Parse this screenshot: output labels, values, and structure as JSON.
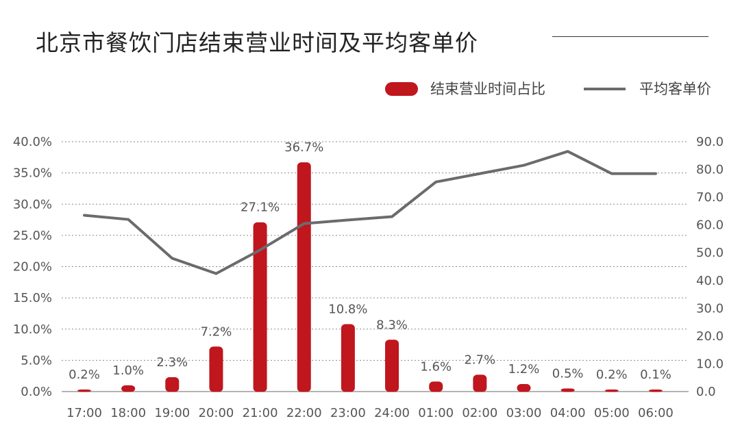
{
  "chart_data": {
    "type": "bar+line",
    "title": "北京市餐饮门店结束营业时间及平均客单价",
    "categories": [
      "17:00",
      "18:00",
      "19:00",
      "20:00",
      "21:00",
      "22:00",
      "23:00",
      "24:00",
      "01:00",
      "02:00",
      "03:00",
      "04:00",
      "05:00",
      "06:00"
    ],
    "series": [
      {
        "name": "结束营业时间占比",
        "type": "bar",
        "axis": "left",
        "color": "#c0161e",
        "values": [
          0.2,
          1.0,
          2.3,
          7.2,
          27.1,
          36.7,
          10.8,
          8.3,
          1.6,
          2.7,
          1.2,
          0.5,
          0.2,
          0.1
        ],
        "labels": [
          "0.2%",
          "1.0%",
          "2.3%",
          "7.2%",
          "27.1%",
          "36.7%",
          "10.8%",
          "8.3%",
          "1.6%",
          "2.7%",
          "1.2%",
          "0.5%",
          "0.2%",
          "0.1%"
        ]
      },
      {
        "name": "平均客单价",
        "type": "line",
        "axis": "right",
        "color": "#6b6b6b",
        "values": [
          63.5,
          62,
          48,
          42.5,
          51,
          60.5,
          61.8,
          63,
          75.5,
          78.5,
          81.5,
          86.5,
          78.5,
          78.5
        ]
      }
    ],
    "ylim_left": [
      0,
      40
    ],
    "ylim_right": [
      0,
      90
    ],
    "left_ticks": [
      "0.0%",
      "5.0%",
      "10.0%",
      "15.0%",
      "20.0%",
      "25.0%",
      "30.0%",
      "35.0%",
      "40.0%"
    ],
    "right_ticks": [
      "0.0",
      "10.0",
      "20.0",
      "30.0",
      "40.0",
      "50.0",
      "60.0",
      "70.0",
      "80.0",
      "90.0"
    ],
    "legend_position": "top-right",
    "grid": "horizontal dotted"
  }
}
